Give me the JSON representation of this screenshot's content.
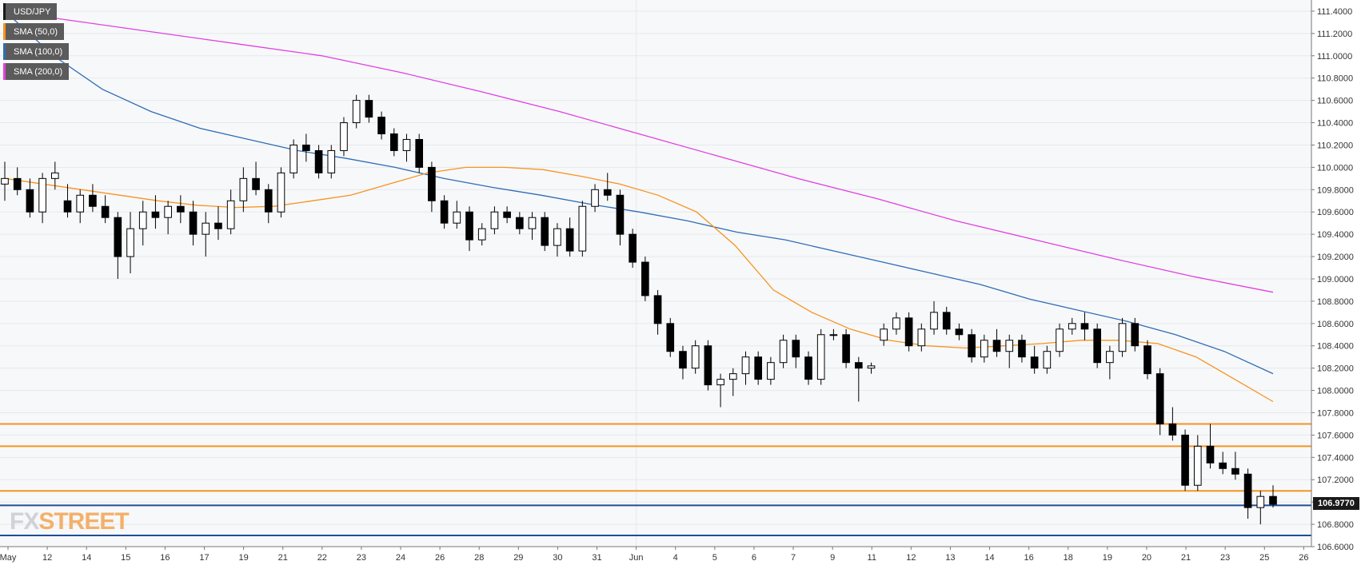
{
  "header": {
    "symbol": "USD/JPY",
    "legend": [
      {
        "label": "SMA (50,0)",
        "color": "#f7931e"
      },
      {
        "label": "SMA (100,0)",
        "color": "#2f6db5"
      },
      {
        "label": "SMA (200,0)",
        "color": "#e040e0"
      }
    ]
  },
  "watermark": {
    "part1": "FX",
    "part2": "STREET"
  },
  "colors": {
    "background": "#ffffff",
    "plot_background": "#f7f8fa",
    "candle_up_fill": "#ffffff",
    "candle_down_fill": "#000000",
    "sma50": "#f7931e",
    "sma100": "#2f6db5",
    "sma200": "#e040e0",
    "level_orange": "#f7931e",
    "level_blue": "#1f4e99"
  },
  "chart_data": {
    "type": "candlestick",
    "title": "USD/JPY",
    "ylim": [
      106.6,
      111.5
    ],
    "y_ticks": [
      "111.4000",
      "111.2000",
      "111.0000",
      "110.8000",
      "110.6000",
      "110.4000",
      "110.2000",
      "110.0000",
      "109.8000",
      "109.6000",
      "109.4000",
      "109.2000",
      "109.0000",
      "108.8000",
      "108.6000",
      "108.4000",
      "108.2000",
      "108.0000",
      "107.8000",
      "107.6000",
      "107.4000",
      "107.2000",
      "107.0000",
      "106.8000",
      "106.6000"
    ],
    "x_ticks": [
      "May",
      "12",
      "14",
      "15",
      "16",
      "17",
      "19",
      "21",
      "22",
      "23",
      "24",
      "26",
      "28",
      "29",
      "30",
      "31",
      "Jun",
      "4",
      "5",
      "6",
      "7",
      "9",
      "11",
      "12",
      "13",
      "14",
      "16",
      "18",
      "19",
      "20",
      "21",
      "23",
      "25",
      "26"
    ],
    "candles_ohlc": [
      [
        109.85,
        110.05,
        109.7,
        109.9
      ],
      [
        109.9,
        110.0,
        109.75,
        109.8
      ],
      [
        109.8,
        109.9,
        109.55,
        109.6
      ],
      [
        109.6,
        109.95,
        109.5,
        109.9
      ],
      [
        109.9,
        110.05,
        109.8,
        109.95
      ],
      [
        109.7,
        109.85,
        109.55,
        109.6
      ],
      [
        109.6,
        109.8,
        109.5,
        109.75
      ],
      [
        109.75,
        109.85,
        109.6,
        109.65
      ],
      [
        109.65,
        109.75,
        109.5,
        109.55
      ],
      [
        109.55,
        109.6,
        109.0,
        109.2
      ],
      [
        109.2,
        109.6,
        109.05,
        109.45
      ],
      [
        109.45,
        109.7,
        109.3,
        109.6
      ],
      [
        109.6,
        109.75,
        109.45,
        109.55
      ],
      [
        109.55,
        109.7,
        109.4,
        109.65
      ],
      [
        109.65,
        109.75,
        109.5,
        109.6
      ],
      [
        109.6,
        109.7,
        109.3,
        109.4
      ],
      [
        109.4,
        109.6,
        109.2,
        109.5
      ],
      [
        109.5,
        109.65,
        109.35,
        109.45
      ],
      [
        109.45,
        109.8,
        109.4,
        109.7
      ],
      [
        109.7,
        110.0,
        109.6,
        109.9
      ],
      [
        109.9,
        110.05,
        109.75,
        109.8
      ],
      [
        109.8,
        109.85,
        109.5,
        109.6
      ],
      [
        109.6,
        110.0,
        109.55,
        109.95
      ],
      [
        109.95,
        110.25,
        109.9,
        110.2
      ],
      [
        110.2,
        110.3,
        110.05,
        110.15
      ],
      [
        110.15,
        110.2,
        109.9,
        109.95
      ],
      [
        109.95,
        110.2,
        109.9,
        110.15
      ],
      [
        110.15,
        110.45,
        110.1,
        110.4
      ],
      [
        110.4,
        110.65,
        110.35,
        110.6
      ],
      [
        110.6,
        110.65,
        110.4,
        110.45
      ],
      [
        110.45,
        110.5,
        110.25,
        110.3
      ],
      [
        110.3,
        110.35,
        110.1,
        110.15
      ],
      [
        110.15,
        110.3,
        110.05,
        110.25
      ],
      [
        110.25,
        110.3,
        109.95,
        110.0
      ],
      [
        110.0,
        110.05,
        109.6,
        109.7
      ],
      [
        109.7,
        109.75,
        109.45,
        109.5
      ],
      [
        109.5,
        109.7,
        109.45,
        109.6
      ],
      [
        109.6,
        109.65,
        109.25,
        109.35
      ],
      [
        109.35,
        109.5,
        109.3,
        109.45
      ],
      [
        109.45,
        109.65,
        109.4,
        109.6
      ],
      [
        109.6,
        109.65,
        109.5,
        109.55
      ],
      [
        109.55,
        109.6,
        109.4,
        109.45
      ],
      [
        109.45,
        109.6,
        109.35,
        109.55
      ],
      [
        109.55,
        109.6,
        109.25,
        109.3
      ],
      [
        109.3,
        109.5,
        109.2,
        109.45
      ],
      [
        109.45,
        109.55,
        109.2,
        109.25
      ],
      [
        109.25,
        109.7,
        109.2,
        109.65
      ],
      [
        109.65,
        109.85,
        109.6,
        109.8
      ],
      [
        109.8,
        109.95,
        109.7,
        109.75
      ],
      [
        109.75,
        109.8,
        109.3,
        109.4
      ],
      [
        109.4,
        109.45,
        109.1,
        109.15
      ],
      [
        109.15,
        109.2,
        108.8,
        108.85
      ],
      [
        108.85,
        108.9,
        108.5,
        108.6
      ],
      [
        108.6,
        108.65,
        108.3,
        108.35
      ],
      [
        108.35,
        108.4,
        108.1,
        108.2
      ],
      [
        108.2,
        108.45,
        108.15,
        108.4
      ],
      [
        108.4,
        108.45,
        108.0,
        108.05
      ],
      [
        108.05,
        108.15,
        107.85,
        108.1
      ],
      [
        108.1,
        108.2,
        107.95,
        108.15
      ],
      [
        108.15,
        108.35,
        108.05,
        108.3
      ],
      [
        108.3,
        108.35,
        108.05,
        108.1
      ],
      [
        108.1,
        108.3,
        108.05,
        108.25
      ],
      [
        108.25,
        108.5,
        108.2,
        108.45
      ],
      [
        108.45,
        108.5,
        108.2,
        108.3
      ],
      [
        108.3,
        108.35,
        108.05,
        108.1
      ],
      [
        108.1,
        108.55,
        108.05,
        108.5
      ],
      [
        108.5,
        108.55,
        108.45,
        108.5
      ],
      [
        108.5,
        108.55,
        108.2,
        108.25
      ],
      [
        108.25,
        108.3,
        107.9,
        108.2
      ],
      [
        108.2,
        108.25,
        108.15,
        108.22
      ],
      [
        108.45,
        108.6,
        108.4,
        108.55
      ],
      [
        108.55,
        108.7,
        108.5,
        108.65
      ],
      [
        108.65,
        108.7,
        108.35,
        108.4
      ],
      [
        108.4,
        108.6,
        108.35,
        108.55
      ],
      [
        108.55,
        108.8,
        108.5,
        108.7
      ],
      [
        108.7,
        108.75,
        108.5,
        108.55
      ],
      [
        108.55,
        108.6,
        108.45,
        108.5
      ],
      [
        108.5,
        108.55,
        108.25,
        108.3
      ],
      [
        108.3,
        108.5,
        108.25,
        108.45
      ],
      [
        108.45,
        108.55,
        108.3,
        108.35
      ],
      [
        108.35,
        108.5,
        108.2,
        108.45
      ],
      [
        108.45,
        108.5,
        108.25,
        108.3
      ],
      [
        108.3,
        108.4,
        108.15,
        108.2
      ],
      [
        108.2,
        108.4,
        108.15,
        108.35
      ],
      [
        108.35,
        108.6,
        108.3,
        108.55
      ],
      [
        108.55,
        108.65,
        108.5,
        108.6
      ],
      [
        108.6,
        108.7,
        108.45,
        108.55
      ],
      [
        108.55,
        108.6,
        108.2,
        108.25
      ],
      [
        108.25,
        108.4,
        108.1,
        108.35
      ],
      [
        108.35,
        108.65,
        108.3,
        108.6
      ],
      [
        108.6,
        108.65,
        108.35,
        108.4
      ],
      [
        108.4,
        108.45,
        108.1,
        108.15
      ],
      [
        108.15,
        108.2,
        107.6,
        107.7
      ],
      [
        107.7,
        107.85,
        107.55,
        107.6
      ],
      [
        107.6,
        107.65,
        107.1,
        107.15
      ],
      [
        107.15,
        107.6,
        107.1,
        107.5
      ],
      [
        107.5,
        107.7,
        107.3,
        107.35
      ],
      [
        107.35,
        107.45,
        107.25,
        107.3
      ],
      [
        107.3,
        107.45,
        107.2,
        107.25
      ],
      [
        107.25,
        107.3,
        106.85,
        106.95
      ],
      [
        106.95,
        107.1,
        106.8,
        107.05
      ],
      [
        107.05,
        107.15,
        106.95,
        106.98
      ]
    ],
    "sma50": [
      109.9,
      109.85,
      109.8,
      109.75,
      109.7,
      109.66,
      109.64,
      109.65,
      109.7,
      109.75,
      109.85,
      109.95,
      110.0,
      110.0,
      109.98,
      109.92,
      109.85,
      109.75,
      109.6,
      109.3,
      108.9,
      108.7,
      108.55,
      108.45,
      108.4,
      108.38,
      108.4,
      108.42,
      108.45,
      108.45,
      108.42,
      108.3,
      108.1,
      107.9
    ],
    "sma100": [
      111.4,
      111.0,
      110.7,
      110.5,
      110.35,
      110.25,
      110.15,
      110.08,
      110.0,
      109.9,
      109.82,
      109.75,
      109.67,
      109.6,
      109.52,
      109.42,
      109.35,
      109.25,
      109.15,
      109.05,
      108.95,
      108.82,
      108.72,
      108.62,
      108.5,
      108.35,
      108.15
    ],
    "sma200": [
      111.4,
      111.3,
      111.2,
      111.1,
      111.0,
      110.85,
      110.68,
      110.5,
      110.3,
      110.1,
      109.9,
      109.72,
      109.52,
      109.35,
      109.18,
      109.02,
      108.88
    ],
    "levels": [
      {
        "value": 107.7,
        "color": "#f7931e"
      },
      {
        "value": 107.5,
        "color": "#f7931e"
      },
      {
        "value": 107.1,
        "color": "#f7931e"
      },
      {
        "value": 106.97,
        "color": "#1f4e99"
      },
      {
        "value": 106.7,
        "color": "#1f4e99"
      }
    ],
    "last_price": "106.9770",
    "last_price_value": 106.977,
    "grid": true,
    "y_axis_side": "right"
  }
}
